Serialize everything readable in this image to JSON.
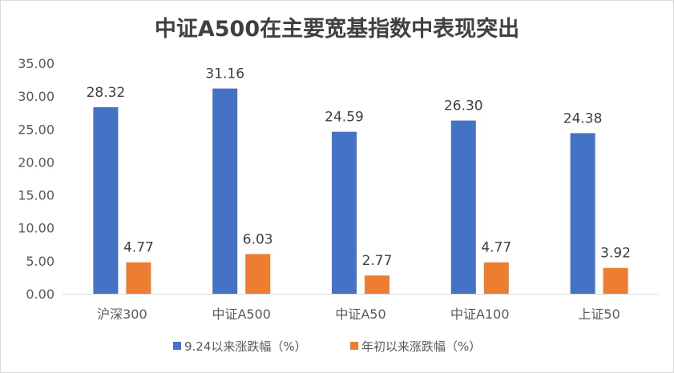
{
  "chart_data": {
    "type": "bar",
    "title": "中证A500在主要宽基指数中表现突出",
    "categories": [
      "沪深300",
      "中证A500",
      "中证A50",
      "中证A100",
      "上证50"
    ],
    "series": [
      {
        "name": "9.24以来涨跌幅（%）",
        "values": [
          28.32,
          31.16,
          24.59,
          26.3,
          24.38
        ],
        "labels": [
          "28.32",
          "31.16",
          "24.59",
          "26.30",
          "24.38"
        ],
        "color": "#4472c4"
      },
      {
        "name": "年初以来涨跌幅（%）",
        "values": [
          4.77,
          6.03,
          2.77,
          4.77,
          3.92
        ],
        "labels": [
          "4.77",
          "6.03",
          "2.77",
          "4.77",
          "3.92"
        ],
        "color": "#ed7d31"
      }
    ],
    "ylim": [
      0,
      35
    ],
    "yticks": [
      "0.00",
      "5.00",
      "10.00",
      "15.00",
      "20.00",
      "25.00",
      "30.00",
      "35.00"
    ],
    "xlabel": "",
    "ylabel": "",
    "grid": false,
    "legend_position": "bottom"
  },
  "colors": {
    "axis": "#d9d9d9",
    "text": "#595959",
    "title": "#404040"
  }
}
